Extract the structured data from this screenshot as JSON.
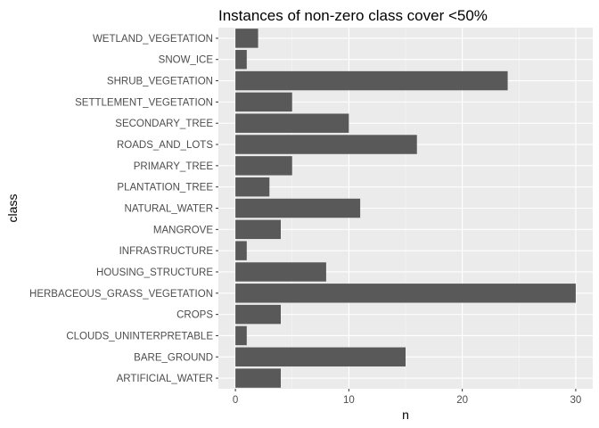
{
  "chart_data": {
    "type": "bar",
    "orientation": "horizontal",
    "title": "Instances of non-zero class cover <50%",
    "xlabel": "n",
    "ylabel": "class",
    "categories": [
      "WETLAND_VEGETATION",
      "SNOW_ICE",
      "SHRUB_VEGETATION",
      "SETTLEMENT_VEGETATION",
      "SECONDARY_TREE",
      "ROADS_AND_LOTS",
      "PRIMARY_TREE",
      "PLANTATION_TREE",
      "NATURAL_WATER",
      "MANGROVE",
      "INFRASTRUCTURE",
      "HOUSING_STRUCTURE",
      "HERBACEOUS_GRASS_VEGETATION",
      "CROPS",
      "CLOUDS_UNINTERPRETABLE",
      "BARE_GROUND",
      "ARTIFICIAL_WATER"
    ],
    "values": [
      2,
      1,
      24,
      5,
      10,
      16,
      5,
      3,
      11,
      4,
      1,
      8,
      30,
      4,
      1,
      15,
      4
    ],
    "xlim": [
      -1.5,
      31.5
    ],
    "xticks": [
      0,
      10,
      20,
      30
    ],
    "grid": true,
    "colors": {
      "bar": "#595959",
      "panel": "#ebebeb",
      "grid_major": "#ffffff",
      "grid_minor": "#f5f5f5",
      "tick_label": "#4d4d4d",
      "tick": "#333333"
    }
  }
}
